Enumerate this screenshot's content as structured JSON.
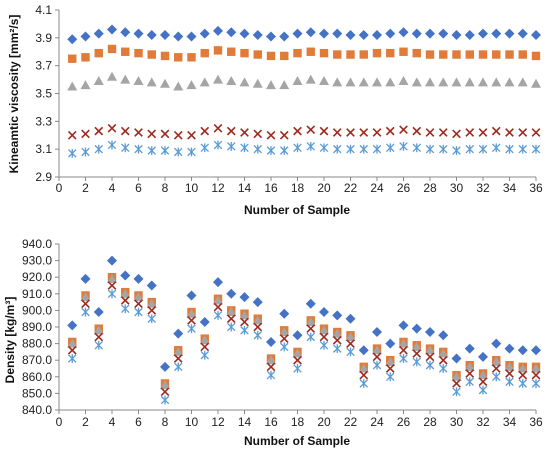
{
  "chart_data": [
    {
      "type": "scatter",
      "xlabel": "Number of Sample",
      "ylabel": "Kineamtic viscosity [mm²/s]",
      "xlim": [
        0,
        36
      ],
      "ylim": [
        2.9,
        4.1
      ],
      "xticks": [
        0,
        2,
        4,
        6,
        8,
        10,
        12,
        14,
        16,
        18,
        20,
        22,
        24,
        26,
        28,
        30,
        32,
        34,
        36
      ],
      "yticks": [
        2.9,
        3.1,
        3.3,
        3.5,
        3.7,
        3.9,
        4.1
      ],
      "ytick_labels": [
        "2.9",
        "3.1",
        "3.3",
        "3.5",
        "3.7",
        "3.9",
        "4.1"
      ],
      "grid": false,
      "x": [
        1,
        2,
        3,
        4,
        5,
        6,
        7,
        8,
        9,
        10,
        11,
        12,
        13,
        14,
        15,
        16,
        17,
        18,
        19,
        20,
        21,
        22,
        23,
        24,
        25,
        26,
        27,
        28,
        29,
        30,
        31,
        32,
        33,
        34,
        35,
        36
      ],
      "series": [
        {
          "marker": "diamond",
          "color": "#4472c4",
          "values": [
            3.89,
            3.91,
            3.93,
            3.96,
            3.94,
            3.93,
            3.92,
            3.92,
            3.91,
            3.91,
            3.93,
            3.95,
            3.94,
            3.93,
            3.92,
            3.91,
            3.91,
            3.93,
            3.94,
            3.93,
            3.93,
            3.92,
            3.92,
            3.92,
            3.93,
            3.94,
            3.93,
            3.93,
            3.93,
            3.92,
            3.92,
            3.93,
            3.93,
            3.93,
            3.93,
            3.92
          ]
        },
        {
          "marker": "square",
          "color": "#e07b39",
          "values": [
            3.75,
            3.76,
            3.79,
            3.82,
            3.8,
            3.79,
            3.78,
            3.77,
            3.76,
            3.76,
            3.79,
            3.81,
            3.8,
            3.79,
            3.78,
            3.77,
            3.77,
            3.79,
            3.8,
            3.79,
            3.78,
            3.78,
            3.78,
            3.79,
            3.79,
            3.8,
            3.79,
            3.78,
            3.78,
            3.78,
            3.78,
            3.78,
            3.78,
            3.78,
            3.78,
            3.77
          ]
        },
        {
          "marker": "triangle",
          "color": "#a5a5a5",
          "values": [
            3.55,
            3.56,
            3.59,
            3.62,
            3.6,
            3.59,
            3.58,
            3.57,
            3.55,
            3.56,
            3.58,
            3.6,
            3.59,
            3.58,
            3.57,
            3.56,
            3.56,
            3.59,
            3.6,
            3.59,
            3.58,
            3.58,
            3.58,
            3.58,
            3.58,
            3.59,
            3.58,
            3.58,
            3.58,
            3.58,
            3.58,
            3.58,
            3.58,
            3.58,
            3.58,
            3.57
          ]
        },
        {
          "marker": "x",
          "color": "#9e2a1e",
          "values": [
            3.2,
            3.21,
            3.23,
            3.25,
            3.23,
            3.22,
            3.21,
            3.21,
            3.2,
            3.2,
            3.23,
            3.25,
            3.23,
            3.22,
            3.21,
            3.2,
            3.2,
            3.23,
            3.24,
            3.23,
            3.22,
            3.22,
            3.22,
            3.22,
            3.23,
            3.24,
            3.23,
            3.22,
            3.22,
            3.21,
            3.22,
            3.22,
            3.23,
            3.22,
            3.22,
            3.22
          ]
        },
        {
          "marker": "star",
          "color": "#5b9bd5",
          "values": [
            3.07,
            3.08,
            3.1,
            3.13,
            3.11,
            3.1,
            3.09,
            3.09,
            3.08,
            3.08,
            3.11,
            3.13,
            3.12,
            3.11,
            3.1,
            3.09,
            3.09,
            3.11,
            3.12,
            3.11,
            3.1,
            3.1,
            3.1,
            3.1,
            3.11,
            3.12,
            3.11,
            3.1,
            3.1,
            3.09,
            3.1,
            3.1,
            3.11,
            3.1,
            3.1,
            3.1
          ]
        }
      ]
    },
    {
      "type": "scatter",
      "xlabel": "Number of Sample",
      "ylabel": "Density [kg/m³]",
      "xlim": [
        0,
        36
      ],
      "ylim": [
        840,
        940
      ],
      "xticks": [
        0,
        2,
        4,
        6,
        8,
        10,
        12,
        14,
        16,
        18,
        20,
        22,
        24,
        26,
        28,
        30,
        32,
        34,
        36
      ],
      "yticks": [
        840,
        850,
        860,
        870,
        880,
        890,
        900,
        910,
        920,
        930,
        940
      ],
      "ytick_labels": [
        "840.0",
        "850.0",
        "860.0",
        "870.0",
        "880.0",
        "890.0",
        "900.0",
        "910.0",
        "920.0",
        "930.0",
        "940.0"
      ],
      "grid": false,
      "x": [
        1,
        2,
        3,
        4,
        5,
        6,
        7,
        8,
        9,
        10,
        11,
        12,
        13,
        14,
        15,
        16,
        17,
        18,
        19,
        20,
        21,
        22,
        23,
        24,
        25,
        26,
        27,
        28,
        29,
        30,
        31,
        32,
        33,
        34,
        35,
        36
      ],
      "series": [
        {
          "marker": "diamond",
          "color": "#4472c4",
          "values": [
            891,
            919,
            899,
            930,
            921,
            919,
            915,
            866,
            886,
            909,
            893,
            917,
            910,
            908,
            905,
            881,
            898,
            885,
            904,
            899,
            897,
            895,
            876,
            887,
            880,
            891,
            889,
            887,
            885,
            871,
            877,
            872,
            880,
            877,
            876,
            876
          ]
        },
        {
          "marker": "square",
          "color": "#e07b39",
          "values": [
            881,
            909,
            889,
            920,
            911,
            909,
            905,
            856,
            876,
            899,
            883,
            907,
            900,
            898,
            895,
            871,
            888,
            875,
            894,
            889,
            887,
            885,
            866,
            877,
            870,
            881,
            879,
            877,
            875,
            861,
            867,
            862,
            870,
            867,
            866,
            866
          ]
        },
        {
          "marker": "triangle",
          "color": "#a5a5a5",
          "values": [
            880,
            908,
            888,
            919,
            910,
            908,
            904,
            855,
            875,
            898,
            882,
            906,
            899,
            897,
            894,
            870,
            887,
            874,
            893,
            888,
            886,
            884,
            865,
            876,
            869,
            880,
            878,
            876,
            874,
            860,
            866,
            861,
            869,
            866,
            865,
            865
          ]
        },
        {
          "marker": "x",
          "color": "#9e2a1e",
          "values": [
            876,
            904,
            884,
            915,
            906,
            904,
            900,
            851,
            871,
            894,
            878,
            902,
            895,
            893,
            890,
            866,
            883,
            870,
            889,
            884,
            882,
            880,
            861,
            872,
            865,
            876,
            874,
            872,
            870,
            856,
            862,
            857,
            865,
            862,
            861,
            861
          ]
        },
        {
          "marker": "star",
          "color": "#5b9bd5",
          "values": [
            871,
            899,
            879,
            910,
            901,
            899,
            895,
            846,
            866,
            889,
            873,
            897,
            890,
            888,
            885,
            861,
            878,
            865,
            884,
            879,
            877,
            875,
            856,
            867,
            860,
            871,
            869,
            867,
            865,
            851,
            857,
            852,
            860,
            857,
            856,
            856
          ]
        }
      ]
    }
  ]
}
